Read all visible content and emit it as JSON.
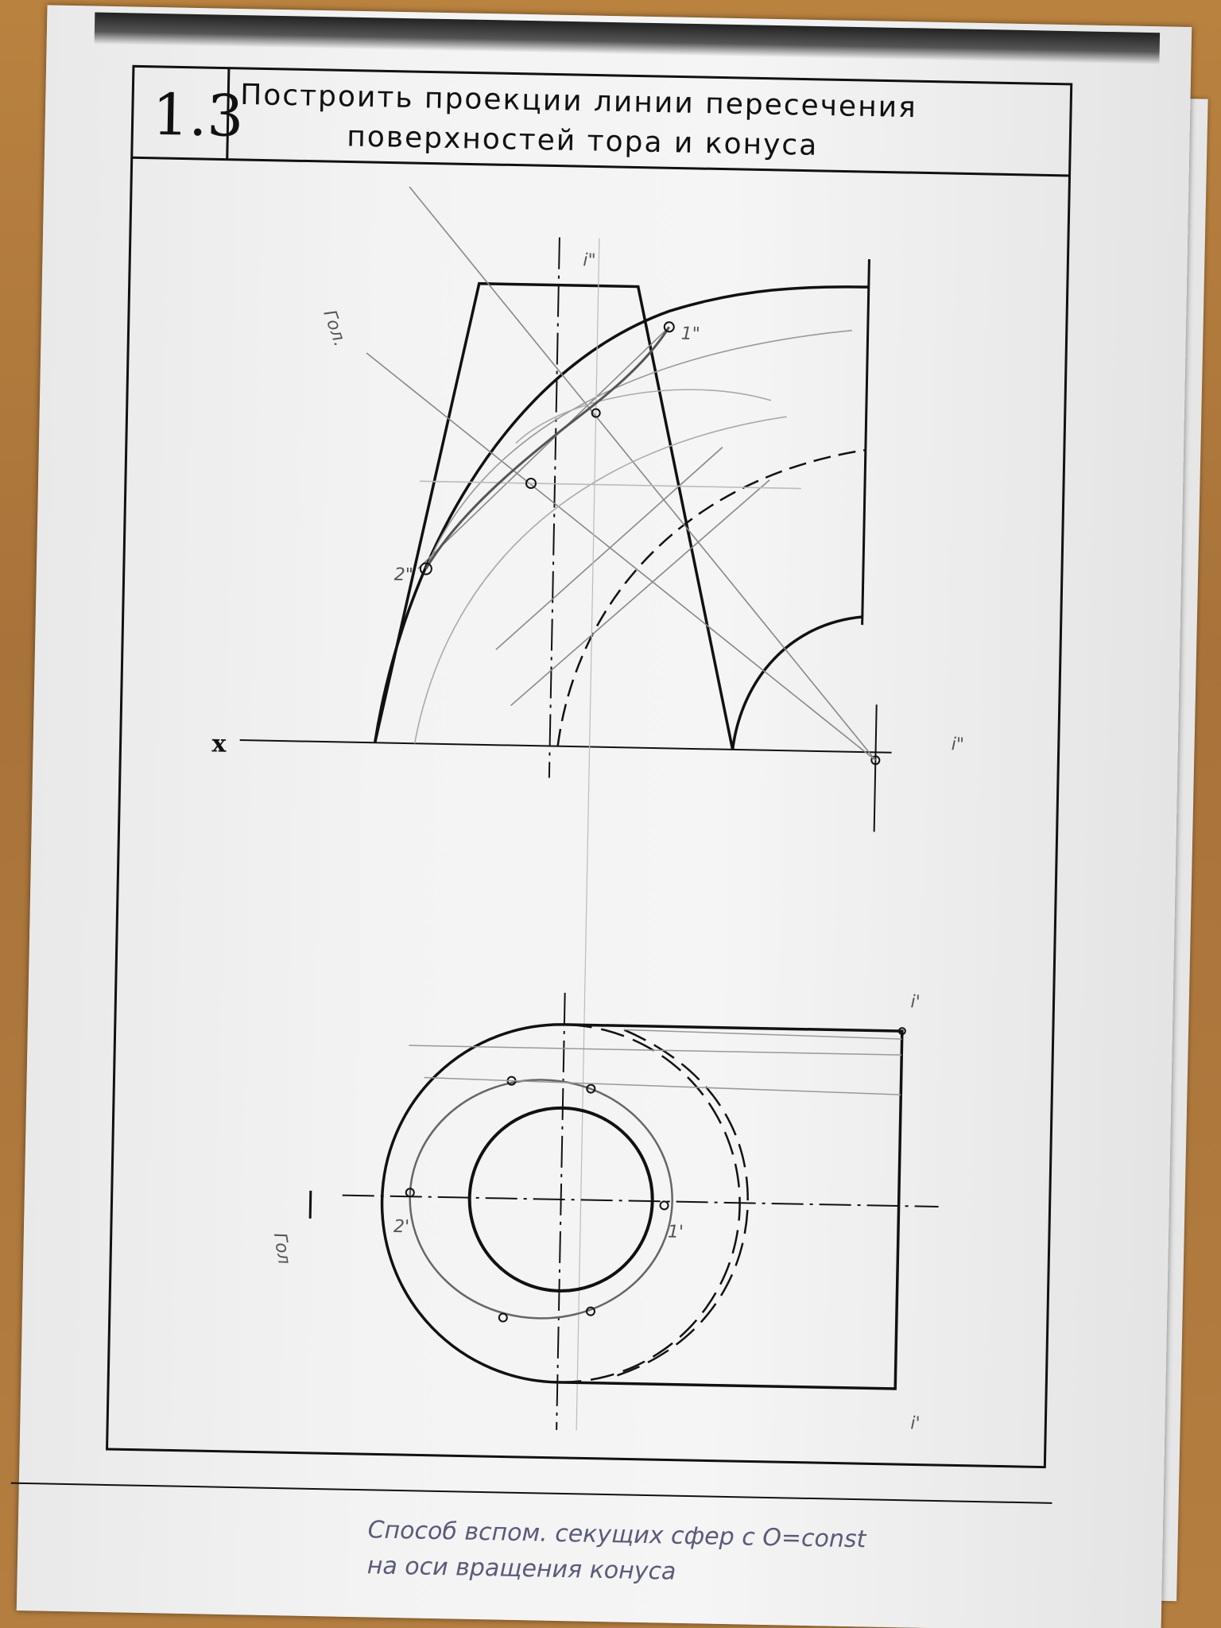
{
  "task": {
    "number": "1.3",
    "title_line1": "Построить проекции линии пересечения",
    "title_line2": "поверхностей тора и конуса"
  },
  "axis": {
    "x_label": "x"
  },
  "pencil_labels": {
    "plane_top": "Гол.",
    "plane_bottom": "Гол",
    "point1_front": "1\"",
    "point2_front": "2\"",
    "point1_top": "1'",
    "point2_top": "2'",
    "center_front_top": "i\"",
    "center_front_right": "i\"",
    "center_top_upper": "i'",
    "center_top_lower": "i'"
  },
  "handwritten_note": {
    "line1": "Способ вспом. секущих сфер с О=const",
    "line2": "на оси вращения конуса"
  }
}
